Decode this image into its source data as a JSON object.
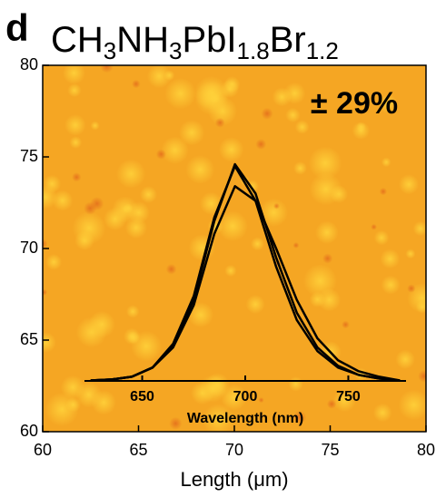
{
  "chart_data": [
    {
      "type": "map",
      "panel": "d",
      "title": [
        "CH",
        "3",
        "NH",
        "3",
        "PbI",
        "1.8",
        "Br",
        "1.2"
      ],
      "annotation": "± 29%",
      "xlabel": "Length (μm)",
      "xlim": [
        60,
        80
      ],
      "xticks": [
        60,
        65,
        70,
        75,
        80
      ],
      "ylim": [
        60,
        80
      ],
      "yticks": [
        60,
        65,
        70,
        75,
        80
      ],
      "color": "#f5a623"
    },
    {
      "type": "line",
      "xlabel": "Wavelength (nm)",
      "xlim": [
        622,
        778
      ],
      "xticks": [
        650,
        700,
        750
      ],
      "x": [
        625,
        635,
        645,
        655,
        665,
        675,
        685,
        695,
        705,
        715,
        725,
        735,
        745,
        755,
        765,
        775
      ],
      "series": [
        {
          "color": "#000000",
          "values": [
            62.8,
            62.85,
            63.0,
            63.5,
            64.7,
            67.2,
            71.5,
            74.6,
            73.0,
            69.5,
            66.5,
            64.6,
            63.6,
            63.1,
            62.9,
            62.8
          ]
        },
        {
          "color": "#000000",
          "values": [
            62.8,
            62.85,
            63.0,
            63.5,
            64.8,
            67.4,
            71.7,
            74.5,
            72.6,
            69.0,
            66.1,
            64.4,
            63.5,
            63.1,
            62.9,
            62.8
          ]
        },
        {
          "color": "#000000",
          "values": [
            62.8,
            62.85,
            63.0,
            63.5,
            64.6,
            66.9,
            70.8,
            73.4,
            72.6,
            70.0,
            67.2,
            65.1,
            63.9,
            63.3,
            63.0,
            62.8
          ]
        }
      ]
    }
  ]
}
